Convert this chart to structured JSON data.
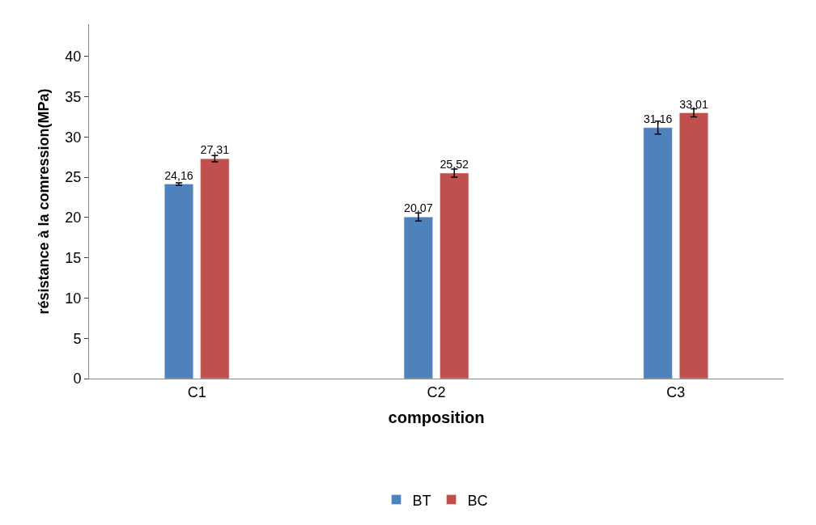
{
  "chart_data": {
    "type": "bar",
    "xlabel": "composition",
    "ylabel": "résistance à la comression(MPa)",
    "categories": [
      "C1",
      "C2",
      "C3"
    ],
    "series": [
      {
        "name": "BT",
        "color": "#4f81bd",
        "values": [
          24.16,
          20.07,
          31.16
        ],
        "value_labels": [
          "24,16",
          "20,07",
          "31,16"
        ],
        "errors": [
          0.15,
          0.5,
          0.8
        ]
      },
      {
        "name": "BC",
        "color": "#c0504d",
        "values": [
          27.31,
          25.52,
          33.01
        ],
        "value_labels": [
          "27,31",
          "25,52",
          "33,01"
        ],
        "errors": [
          0.4,
          0.5,
          0.5
        ]
      }
    ],
    "ylim": [
      0,
      44
    ],
    "yticks": [
      0,
      5,
      10,
      15,
      20,
      25,
      30,
      35,
      40
    ],
    "legend": "bottom"
  }
}
